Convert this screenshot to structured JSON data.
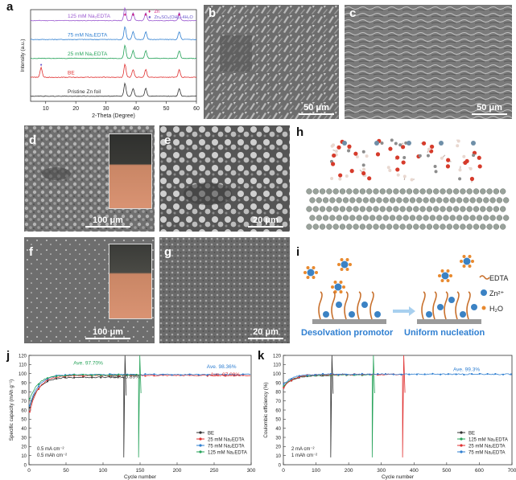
{
  "panels": {
    "a": {
      "label": "a"
    },
    "b": {
      "label": "b",
      "scale": "50 μm"
    },
    "c": {
      "label": "c",
      "scale": "50 μm"
    },
    "d": {
      "label": "d",
      "scale": "100 μm"
    },
    "e": {
      "label": "e",
      "scale": "20 μm"
    },
    "f": {
      "label": "f",
      "scale": "100 μm"
    },
    "g": {
      "label": "g",
      "scale": "20 μm"
    },
    "h": {
      "label": "h"
    },
    "i": {
      "label": "i"
    },
    "j": {
      "label": "j"
    },
    "k": {
      "label": "k"
    }
  },
  "diagram_i": {
    "left_caption": "Desolvation promotor",
    "right_caption": "Uniform nucleation",
    "legend": [
      "EDTA",
      "Zn²⁺",
      "H₂O"
    ]
  },
  "chart_data": [
    {
      "id": "a",
      "type": "line",
      "title": "",
      "xlabel": "2-Theta (Degree)",
      "ylabel": "Intensity (a.u.)",
      "xlim": [
        5,
        60
      ],
      "xticks": [
        10,
        20,
        30,
        40,
        50,
        60
      ],
      "legend": [
        {
          "symbol": "♦",
          "text": "Zn",
          "color": "#d11f7c"
        },
        {
          "symbol": "●",
          "text": "Zn₄SO₄(OH)₆·4H₂O",
          "color": "#6a5acd"
        }
      ],
      "series": [
        {
          "name": "125 mM Na₂EDTA",
          "color": "#9b59d0",
          "peaks": [
            36.3,
            39.0,
            43.2,
            54.3
          ]
        },
        {
          "name": "75 mM Na₂EDTA",
          "color": "#2f7fd1",
          "peaks": [
            36.3,
            39.0,
            43.2,
            54.3
          ]
        },
        {
          "name": "25 mM Na₂EDTA",
          "color": "#27a35a",
          "peaks": [
            36.3,
            39.0,
            43.2,
            54.3
          ]
        },
        {
          "name": "BE",
          "color": "#e03030",
          "peaks": [
            8.5,
            36.3,
            39.0,
            43.2,
            54.3
          ]
        },
        {
          "name": "Pristine Zn foil",
          "color": "#333333",
          "peaks": [
            36.3,
            39.0,
            43.2,
            54.3
          ]
        }
      ]
    },
    {
      "id": "j",
      "type": "scatter",
      "xlabel": "Cycle number",
      "ylabel": "Specific capacity (mAh g⁻¹)",
      "xlim": [
        0,
        300
      ],
      "ylim": [
        0,
        120
      ],
      "xticks": [
        0,
        50,
        100,
        150,
        200,
        250,
        300
      ],
      "yticks": [
        0,
        10,
        20,
        30,
        40,
        50,
        60,
        70,
        80,
        90,
        100,
        110,
        120
      ],
      "conditions": [
        "0.5 mA cm⁻²",
        "0.5 mAh cm⁻²"
      ],
      "annotations": [
        {
          "text": "Ave. 97.70%",
          "color": "#27a35a"
        },
        {
          "text": "Ave. 95.89%",
          "color": "#333333"
        },
        {
          "text": "Ave. 98.36%",
          "color": "#2f7fd1"
        },
        {
          "text": "Ave. 97.09%",
          "color": "#e03030"
        }
      ],
      "series": [
        {
          "name": "BE",
          "color": "#333333",
          "start": 60,
          "plateau": 96,
          "end_cycle": 128
        },
        {
          "name": "25 mM Na₂EDTA",
          "color": "#e03030",
          "start": 55,
          "plateau": 98,
          "end_cycle": 300
        },
        {
          "name": "75 mM Na₂EDTA",
          "color": "#2f7fd1",
          "start": 62,
          "plateau": 99,
          "end_cycle": 300
        },
        {
          "name": "125 mM Na₂EDTA",
          "color": "#27a35a",
          "start": 70,
          "plateau": 98.5,
          "end_cycle": 148
        }
      ]
    },
    {
      "id": "k",
      "type": "scatter",
      "xlabel": "Cycle number",
      "ylabel": "Coulombic efficiency (%)",
      "xlim": [
        0,
        700
      ],
      "ylim": [
        0,
        120
      ],
      "xticks": [
        0,
        100,
        200,
        300,
        400,
        500,
        600,
        700
      ],
      "yticks": [
        0,
        10,
        20,
        30,
        40,
        50,
        60,
        70,
        80,
        90,
        100,
        110,
        120
      ],
      "conditions": [
        "2 mA cm⁻²",
        "1 mAh cm⁻²"
      ],
      "annotations": [
        {
          "text": "Ave. 99.3%",
          "color": "#2f7fd1"
        }
      ],
      "series": [
        {
          "name": "BE",
          "color": "#333333",
          "start": 85,
          "plateau": 98,
          "end_cycle": 145
        },
        {
          "name": "125 mM Na₂EDTA",
          "color": "#27a35a",
          "start": 86,
          "plateau": 98.5,
          "end_cycle": 272
        },
        {
          "name": "25 mM Na₂EDTA",
          "color": "#e03030",
          "start": 84,
          "plateau": 99,
          "end_cycle": 365
        },
        {
          "name": "75 mM Na₂EDTA",
          "color": "#2f7fd1",
          "start": 88,
          "plateau": 99.3,
          "end_cycle": 700
        }
      ]
    }
  ]
}
